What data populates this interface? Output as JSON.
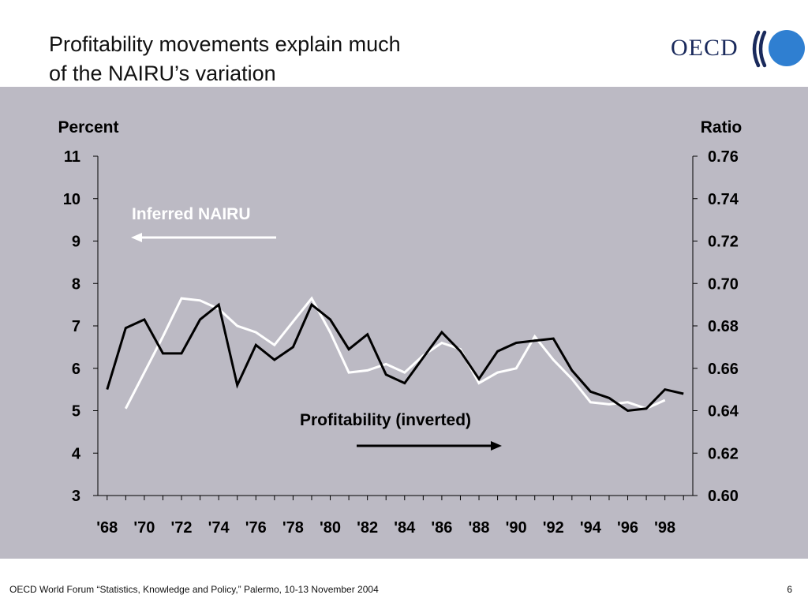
{
  "slide": {
    "title_line1": "Profitability movements explain much",
    "title_line2": "of the NAIRU’s variation",
    "footer": "OECD World Forum “Statistics, Knowledge and Policy,” Palermo, 10-13 November 2004",
    "page_number": "6"
  },
  "logo": {
    "text": "OECD",
    "accent_color": "#2f7fd1",
    "mark_color": "#1a2a5c"
  },
  "chart_data": {
    "type": "line",
    "ylabel": "Percent",
    "y2label": "Ratio",
    "ylim": [
      3,
      11
    ],
    "y2lim": [
      0.6,
      0.76
    ],
    "yticks": [
      "3",
      "4",
      "5",
      "6",
      "7",
      "8",
      "9",
      "10",
      "11"
    ],
    "y2ticks": [
      "0.60",
      "0.62",
      "0.64",
      "0.66",
      "0.68",
      "0.70",
      "0.72",
      "0.74",
      "0.76"
    ],
    "xlim": [
      1967.5,
      1999.5
    ],
    "xticks": [
      1968,
      1970,
      1972,
      1974,
      1976,
      1978,
      1980,
      1982,
      1984,
      1986,
      1988,
      1990,
      1992,
      1994,
      1996,
      1998
    ],
    "xticklabels": [
      "'68",
      "'70",
      "'72",
      "'74",
      "'76",
      "'78",
      "'80",
      "'82",
      "'84",
      "'86",
      "'88",
      "'90",
      "'92",
      "'94",
      "'96",
      "'98"
    ],
    "grid": false,
    "background_color": "#bcbac4",
    "series": [
      {
        "name": "Inferred NAIRU",
        "axis": "left",
        "color": "#ffffff",
        "arrow_direction": "left",
        "x": [
          1969,
          1970,
          1971,
          1972,
          1973,
          1974,
          1975,
          1976,
          1977,
          1978,
          1979,
          1980,
          1981,
          1982,
          1983,
          1984,
          1985,
          1986,
          1987,
          1988,
          1989,
          1990,
          1991,
          1992,
          1993,
          1994,
          1995,
          1996,
          1997,
          1998
        ],
        "values": [
          5.05,
          5.9,
          6.75,
          7.65,
          7.6,
          7.4,
          7.0,
          6.85,
          6.55,
          7.1,
          7.65,
          6.85,
          5.9,
          5.95,
          6.1,
          5.9,
          6.3,
          6.6,
          6.45,
          5.65,
          5.9,
          6.0,
          6.75,
          6.2,
          5.75,
          5.2,
          5.15,
          5.2,
          5.05,
          5.25
        ]
      },
      {
        "name": "Profitability (inverted)",
        "axis": "right",
        "color": "#000000",
        "arrow_direction": "right",
        "x": [
          1968,
          1969,
          1970,
          1971,
          1972,
          1973,
          1974,
          1975,
          1976,
          1977,
          1978,
          1979,
          1980,
          1981,
          1982,
          1983,
          1984,
          1985,
          1986,
          1987,
          1988,
          1989,
          1990,
          1991,
          1992,
          1993,
          1994,
          1995,
          1996,
          1997,
          1998,
          1999
        ],
        "values": [
          0.65,
          0.679,
          0.683,
          0.667,
          0.667,
          0.683,
          0.69,
          0.652,
          0.671,
          0.664,
          0.67,
          0.69,
          0.683,
          0.669,
          0.676,
          0.657,
          0.653,
          0.665,
          0.677,
          0.668,
          0.655,
          0.668,
          0.672,
          0.673,
          0.674,
          0.659,
          0.649,
          0.646,
          0.64,
          0.641,
          0.65,
          0.648
        ]
      }
    ]
  }
}
